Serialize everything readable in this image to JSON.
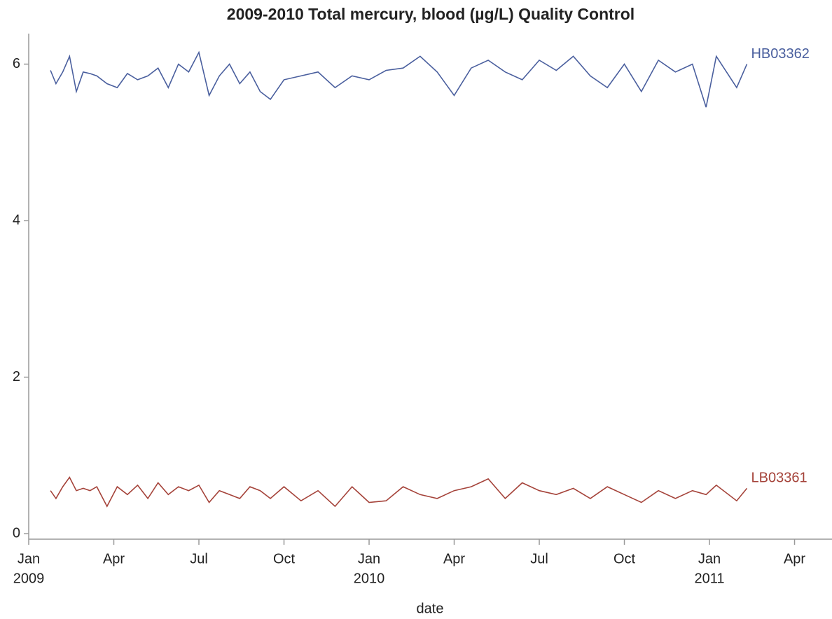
{
  "chart_data": {
    "type": "line",
    "title": "2009-2010 Total mercury, blood (µg/L) Quality Control",
    "x_label": "date",
    "x": [
      2009.064,
      2009.08,
      2009.1,
      2009.12,
      2009.14,
      2009.16,
      2009.18,
      2009.2,
      2009.23,
      2009.26,
      2009.29,
      2009.32,
      2009.35,
      2009.38,
      2009.41,
      2009.44,
      2009.47,
      2009.5,
      2009.53,
      2009.56,
      2009.59,
      2009.62,
      2009.65,
      2009.68,
      2009.71,
      2009.75,
      2009.8,
      2009.85,
      2009.9,
      2009.95,
      2010.0,
      2010.05,
      2010.1,
      2010.15,
      2010.2,
      2010.25,
      2010.3,
      2010.35,
      2010.4,
      2010.45,
      2010.5,
      2010.55,
      2010.6,
      2010.65,
      2010.7,
      2010.75,
      2010.8,
      2010.85,
      2010.9,
      2010.95,
      2010.99,
      2011.02,
      2011.08,
      2011.11
    ],
    "series": [
      {
        "name": "HB03362",
        "color": "#4a5f9e",
        "values": [
          5.92,
          5.75,
          5.9,
          6.1,
          5.65,
          5.9,
          5.88,
          5.85,
          5.75,
          5.7,
          5.88,
          5.8,
          5.85,
          5.95,
          5.7,
          6.0,
          5.9,
          6.15,
          5.6,
          5.85,
          6.0,
          5.75,
          5.9,
          5.65,
          5.55,
          5.8,
          5.85,
          5.9,
          5.7,
          5.85,
          5.8,
          5.92,
          5.95,
          6.1,
          5.9,
          5.6,
          5.95,
          6.05,
          5.9,
          5.8,
          6.05,
          5.92,
          6.1,
          5.85,
          5.7,
          6.0,
          5.65,
          6.05,
          5.9,
          6.0,
          5.45,
          6.1,
          5.7,
          6.0
        ]
      },
      {
        "name": "LB03361",
        "color": "#a5433a",
        "values": [
          0.55,
          0.45,
          0.6,
          0.72,
          0.55,
          0.58,
          0.55,
          0.6,
          0.35,
          0.6,
          0.5,
          0.62,
          0.45,
          0.65,
          0.5,
          0.6,
          0.55,
          0.62,
          0.4,
          0.55,
          0.5,
          0.45,
          0.6,
          0.55,
          0.45,
          0.6,
          0.42,
          0.55,
          0.35,
          0.6,
          0.4,
          0.42,
          0.6,
          0.5,
          0.45,
          0.55,
          0.6,
          0.7,
          0.45,
          0.65,
          0.55,
          0.5,
          0.58,
          0.45,
          0.6,
          0.5,
          0.4,
          0.55,
          0.45,
          0.55,
          0.5,
          0.62,
          0.42,
          0.58
        ]
      }
    ],
    "xlim": [
      2009.0,
      2011.36
    ],
    "xticks": [
      {
        "value": 2009.0,
        "label": [
          "Jan",
          "2009"
        ]
      },
      {
        "value": 2009.25,
        "label": [
          "Apr"
        ]
      },
      {
        "value": 2009.5,
        "label": [
          "Jul"
        ]
      },
      {
        "value": 2009.75,
        "label": [
          "Oct"
        ]
      },
      {
        "value": 2010.0,
        "label": [
          "Jan",
          "2010"
        ]
      },
      {
        "value": 2010.25,
        "label": [
          "Apr"
        ]
      },
      {
        "value": 2010.5,
        "label": [
          "Jul"
        ]
      },
      {
        "value": 2010.75,
        "label": [
          "Oct"
        ]
      },
      {
        "value": 2011.0,
        "label": [
          "Jan",
          "2011"
        ]
      },
      {
        "value": 2011.25,
        "label": [
          "Apr"
        ]
      }
    ],
    "ylim": [
      -0.07,
      6.39
    ],
    "yticks": [
      0,
      2,
      4,
      6
    ],
    "grid": false
  }
}
